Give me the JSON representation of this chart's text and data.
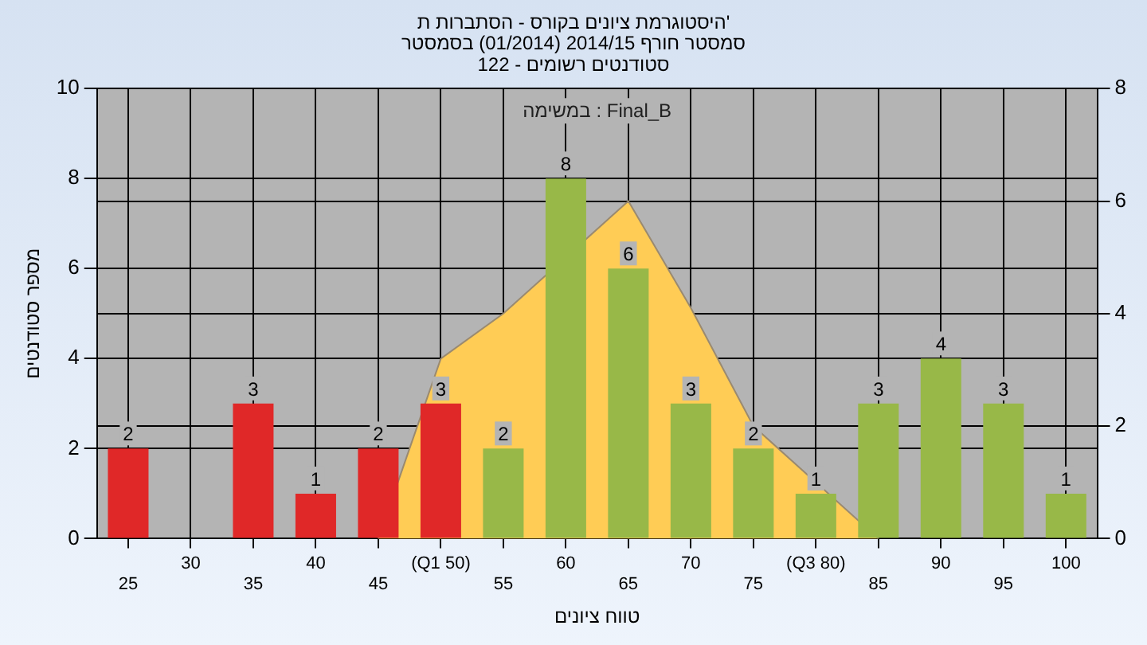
{
  "chart_data": {
    "type": "bar",
    "title": [
      "היסטוגרמת ציונים בקורס - הסתברות ת'",
      "סמסטר חורף 2014/15 (01/2014) בסמסטר",
      "122 - סטודנטים רשומים"
    ],
    "xlabel": "טווח ציונים",
    "ylabel": "מספר סטודנטים",
    "categories": [
      "25",
      "30",
      "35",
      "40",
      "45",
      "(Q1 50)",
      "55",
      "60",
      "65",
      "70",
      "75",
      "(Q3 80)",
      "85",
      "90",
      "95",
      "100"
    ],
    "series": [
      {
        "type": "area",
        "axis": "y2",
        "color": "#ffcc55",
        "values": [
          null,
          null,
          null,
          null,
          0,
          3.2,
          4.0,
          null,
          6,
          4.1,
          2.0,
          1.0,
          0,
          null,
          null,
          null
        ]
      },
      {
        "type": "bar",
        "colors": [
          "#e02828",
          "#e02828",
          "#e02828",
          "#e02828",
          "#e02828",
          "#e02828",
          "#98b848",
          "#98b848",
          "#98b848",
          "#98b848",
          "#98b848",
          "#98b848",
          "#98b848",
          "#98b848",
          "#98b848",
          "#98b848"
        ],
        "values": [
          2,
          0,
          3,
          1,
          2,
          3,
          2,
          8,
          6,
          3,
          2,
          1,
          3,
          4,
          3,
          1
        ],
        "value_labels": [
          "2",
          null,
          "3",
          "1",
          "2",
          "3",
          "2",
          "8",
          "6",
          "3",
          "2",
          "1",
          "3",
          "4",
          "3",
          "1"
        ]
      }
    ],
    "ylim": [
      0,
      10
    ],
    "yticks": [
      0,
      2,
      4,
      6,
      8,
      10
    ],
    "y2lim": [
      0,
      8
    ],
    "y2ticks": [
      0,
      2,
      4,
      6,
      8
    ],
    "annotations": [
      "במשימה : Final_B"
    ],
    "grid": true,
    "legend": false
  }
}
